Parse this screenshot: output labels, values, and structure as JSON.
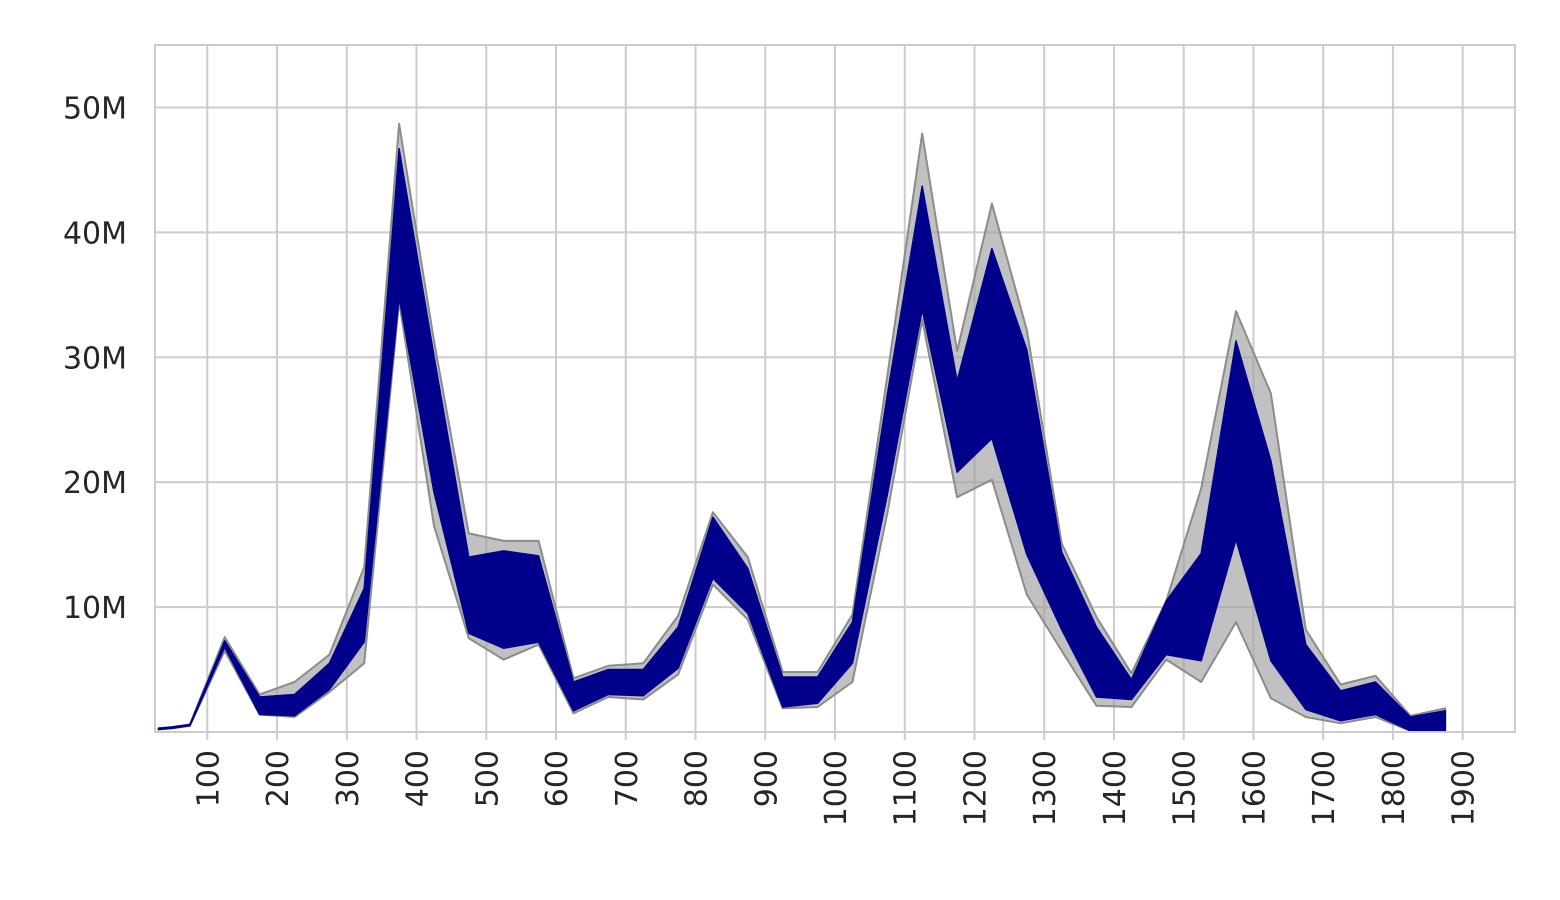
{
  "chart_data": {
    "type": "area",
    "title": "",
    "xlabel": "",
    "ylabel": "",
    "xlim": [
      25,
      1975
    ],
    "ylim": [
      0,
      55000000
    ],
    "grid": true,
    "x_ticks": [
      100,
      200,
      300,
      400,
      500,
      600,
      700,
      800,
      900,
      1000,
      1100,
      1200,
      1300,
      1400,
      1500,
      1600,
      1700,
      1800,
      1900
    ],
    "x_tick_labels": [
      "100",
      "200",
      "300",
      "400",
      "500",
      "600",
      "700",
      "800",
      "900",
      "1000",
      "1100",
      "1200",
      "1300",
      "1400",
      "1500",
      "1600",
      "1700",
      "1800",
      "1900"
    ],
    "y_ticks": [
      10000000,
      20000000,
      30000000,
      40000000,
      50000000
    ],
    "y_tick_labels": [
      "10M",
      "20M",
      "30M",
      "40M",
      "50M"
    ],
    "colors": {
      "inner_band": "#00008b",
      "outer_band": "#a0a0a0"
    },
    "x": [
      30,
      50,
      75,
      125,
      175,
      225,
      275,
      325,
      375,
      425,
      475,
      525,
      575,
      625,
      675,
      725,
      775,
      825,
      875,
      925,
      975,
      1025,
      1075,
      1125,
      1175,
      1225,
      1275,
      1325,
      1375,
      1425,
      1475,
      1525,
      1575,
      1625,
      1675,
      1725,
      1775,
      1825,
      1875
    ],
    "series": [
      {
        "band": "outer",
        "lower": [
          200000,
          300000,
          500000,
          6500000,
          1400000,
          1200000,
          3200000,
          5500000,
          34500000,
          16500000,
          7500000,
          5800000,
          7000000,
          1500000,
          2800000,
          2600000,
          4600000,
          11800000,
          9000000,
          1900000,
          2000000,
          4000000,
          17500000,
          33000000,
          18800000,
          20200000,
          11000000,
          6500000,
          2100000,
          2000000,
          5800000,
          4000000,
          8800000,
          2700000,
          1200000,
          700000,
          1200000,
          100000,
          100000
        ],
        "upper": [
          300000,
          400000,
          600000,
          7600000,
          3000000,
          4000000,
          6200000,
          13200000,
          48700000,
          31300000,
          15900000,
          15300000,
          15300000,
          4300000,
          5300000,
          5500000,
          9300000,
          17600000,
          14000000,
          4800000,
          4800000,
          9400000,
          28500000,
          47900000,
          30500000,
          42300000,
          32200000,
          15100000,
          9200000,
          4700000,
          10500000,
          19500000,
          33700000,
          27100000,
          8200000,
          3800000,
          4500000,
          1300000,
          1900000
        ]
      },
      {
        "band": "inner",
        "lower": [
          200000,
          300000,
          500000,
          6800000,
          1400000,
          1300000,
          3400000,
          7200000,
          34800000,
          19200000,
          7900000,
          6700000,
          7200000,
          1700000,
          3000000,
          2900000,
          5100000,
          12300000,
          9500000,
          2000000,
          2300000,
          5500000,
          19000000,
          33800000,
          20800000,
          23500000,
          14200000,
          8200000,
          2800000,
          2600000,
          6200000,
          5700000,
          15400000,
          5700000,
          1800000,
          900000,
          1400000,
          100000,
          100000
        ],
        "upper": [
          300000,
          400000,
          600000,
          7300000,
          2800000,
          3000000,
          5500000,
          11500000,
          46700000,
          30100000,
          14000000,
          14500000,
          14100000,
          4000000,
          5000000,
          5000000,
          8400000,
          17200000,
          13100000,
          4400000,
          4400000,
          8800000,
          27000000,
          43700000,
          28100000,
          38700000,
          30600000,
          14400000,
          8400000,
          4200000,
          10500000,
          14300000,
          31300000,
          21700000,
          7000000,
          3300000,
          4000000,
          1200000,
          1700000
        ]
      }
    ]
  }
}
